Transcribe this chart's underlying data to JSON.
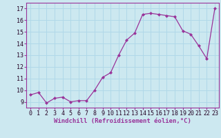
{
  "hours": [
    0,
    1,
    2,
    3,
    4,
    5,
    6,
    7,
    8,
    9,
    10,
    11,
    12,
    13,
    14,
    15,
    16,
    17,
    18,
    19,
    20,
    21,
    22,
    23
  ],
  "values": [
    9.6,
    9.8,
    8.9,
    9.3,
    9.4,
    9.0,
    9.1,
    9.1,
    10.0,
    11.1,
    11.5,
    13.0,
    14.3,
    14.9,
    16.5,
    16.6,
    16.5,
    16.4,
    16.3,
    15.1,
    14.8,
    13.8,
    12.7,
    17.0
  ],
  "line_color": "#993399",
  "marker_color": "#993399",
  "bg_color": "#cce8f0",
  "grid_color": "#b0d8e8",
  "xlabel": "Windchill (Refroidissement éolien,°C)",
  "yticks": [
    9,
    10,
    11,
    12,
    13,
    14,
    15,
    16,
    17
  ],
  "xlim": [
    -0.5,
    23.5
  ],
  "ylim": [
    8.5,
    17.5
  ],
  "tick_fontsize": 6,
  "xlabel_fontsize": 6.5
}
